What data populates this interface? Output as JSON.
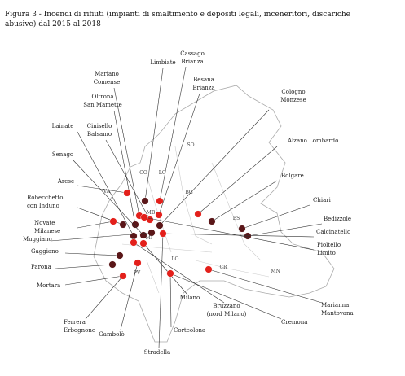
{
  "caption": [
    "Figura 3 - Incendi di rifiuti (impianti di smaltimento e depositi legali, inceneritori, discariche",
    "abusive) dal 2015 al 2018"
  ],
  "places": [
    [
      "Limbiate"
    ],
    [
      "Cassago",
      "Brianza"
    ],
    [
      "Mariano",
      "Comense"
    ],
    [
      "Besana",
      "Brianza"
    ],
    [
      "Oltrona",
      "San Mamette"
    ],
    [
      "Cologno",
      "Monzese"
    ],
    [
      "Cinisello",
      "Balsamo"
    ],
    [
      "Lainate"
    ],
    [
      "Alzano Lombardo"
    ],
    [
      "Senago"
    ],
    [
      "Bolgare"
    ],
    [
      "Arese"
    ],
    [
      "Chiari"
    ],
    [
      "Robecchetto",
      "con Induno"
    ],
    [
      "Bedizzole"
    ],
    [
      "Novate",
      "Milanese"
    ],
    [
      "Calcinatello"
    ],
    [
      "Muggiano"
    ],
    [
      "Pioltello",
      "Limito"
    ],
    [
      "Gaggiano"
    ],
    [
      "Parona"
    ],
    [
      "Mortara"
    ],
    [
      "Milano"
    ],
    [
      "Marianna",
      "Mantovana"
    ],
    [
      "Bruzzano",
      "(nord Milano)"
    ],
    [
      "Cremona"
    ],
    [
      "Ferrera",
      "Erbognone"
    ],
    [
      "Gambolò"
    ],
    [
      "Corteolona"
    ],
    [
      "Stradella"
    ]
  ],
  "provinces": [
    "CO",
    "LC",
    "SO",
    "VA",
    "MB",
    "BG",
    "BS",
    "MI",
    "LO",
    "CR",
    "PV",
    "MN"
  ]
}
